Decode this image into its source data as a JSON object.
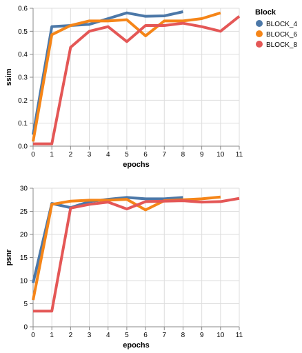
{
  "chart_data": [
    {
      "type": "line",
      "title": "",
      "xlabel": "epochs",
      "ylabel": "ssim",
      "x": [
        0,
        1,
        2,
        3,
        4,
        5,
        6,
        7,
        8,
        9,
        10,
        11
      ],
      "xlim": [
        0,
        11
      ],
      "ylim": [
        0,
        0.6
      ],
      "xticks": [
        0,
        1,
        2,
        3,
        4,
        5,
        6,
        7,
        8,
        9,
        10,
        11
      ],
      "yticks": [
        0.0,
        0.1,
        0.2,
        0.3,
        0.4,
        0.5,
        0.6
      ],
      "ytick_labels": [
        "0.0",
        "0.1",
        "0.2",
        "0.3",
        "0.4",
        "0.5",
        "0.6"
      ],
      "grid": true,
      "series": [
        {
          "name": "BLOCK_4",
          "color": "#4c78a8",
          "x": [
            0,
            1,
            2,
            3,
            4,
            5,
            6,
            7,
            8
          ],
          "values": [
            0.05,
            0.52,
            0.525,
            0.53,
            0.555,
            0.58,
            0.565,
            0.567,
            0.585
          ]
        },
        {
          "name": "BLOCK_6",
          "color": "#f58518",
          "x": [
            0,
            1,
            2,
            3,
            4,
            5,
            6,
            7,
            8,
            9,
            10
          ],
          "values": [
            0.02,
            0.485,
            0.525,
            0.545,
            0.545,
            0.55,
            0.48,
            0.545,
            0.545,
            0.555,
            0.58
          ]
        },
        {
          "name": "BLOCK_8",
          "color": "#e45756",
          "x": [
            0,
            1,
            2,
            3,
            4,
            5,
            6,
            7,
            8,
            9,
            10,
            11
          ],
          "values": [
            0.01,
            0.01,
            0.43,
            0.5,
            0.52,
            0.455,
            0.525,
            0.525,
            0.535,
            0.52,
            0.5,
            0.565
          ]
        }
      ]
    },
    {
      "type": "line",
      "title": "",
      "xlabel": "epochs",
      "ylabel": "psnr",
      "x": [
        0,
        1,
        2,
        3,
        4,
        5,
        6,
        7,
        8,
        9,
        10,
        11
      ],
      "xlim": [
        0,
        11
      ],
      "ylim": [
        0,
        30
      ],
      "xticks": [
        0,
        1,
        2,
        3,
        4,
        5,
        6,
        7,
        8,
        9,
        10,
        11
      ],
      "yticks": [
        0,
        5,
        10,
        15,
        20,
        25,
        30
      ],
      "ytick_labels": [
        "0",
        "5",
        "10",
        "15",
        "20",
        "25",
        "30"
      ],
      "grid": true,
      "series": [
        {
          "name": "BLOCK_4",
          "color": "#4c78a8",
          "x": [
            0,
            1,
            2,
            3,
            4,
            5,
            6,
            7,
            8
          ],
          "values": [
            9.5,
            26.7,
            25.8,
            27.1,
            27.6,
            28.0,
            27.7,
            27.7,
            28.0
          ]
        },
        {
          "name": "BLOCK_6",
          "color": "#f58518",
          "x": [
            0,
            1,
            2,
            3,
            4,
            5,
            6,
            7,
            8,
            9,
            10
          ],
          "values": [
            5.8,
            26.5,
            27.2,
            27.4,
            27.4,
            27.6,
            25.3,
            27.3,
            27.5,
            27.7,
            28.1
          ]
        },
        {
          "name": "BLOCK_8",
          "color": "#e45756",
          "x": [
            0,
            1,
            2,
            3,
            4,
            5,
            6,
            7,
            8,
            9,
            10,
            11
          ],
          "values": [
            3.4,
            3.4,
            25.7,
            26.5,
            27.0,
            25.5,
            27.1,
            27.2,
            27.3,
            27.0,
            27.1,
            27.8
          ]
        }
      ]
    }
  ],
  "legend": {
    "title": "Block",
    "placement": "top-right",
    "items": [
      {
        "label": "BLOCK_4",
        "color": "#4c78a8"
      },
      {
        "label": "BLOCK_6",
        "color": "#f58518"
      },
      {
        "label": "BLOCK_8",
        "color": "#e45756"
      }
    ]
  }
}
